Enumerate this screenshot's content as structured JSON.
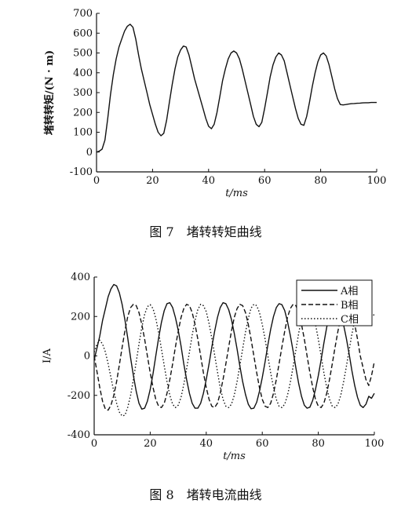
{
  "figures": {
    "fig7_caption": "图 7　堵转转矩曲线",
    "fig8_caption": "图 8　堵转电流曲线"
  },
  "chart_data": [
    {
      "type": "line",
      "title": "",
      "xlabel": "t/ms",
      "ylabel": "堵转转矩/(N · m)",
      "xlim": [
        0,
        100
      ],
      "ylim": [
        -100,
        700
      ],
      "xticks": [
        "0",
        "20",
        "40",
        "60",
        "80",
        "100"
      ],
      "yticks": [
        "-100",
        "0",
        "100",
        "200",
        "300",
        "400",
        "500",
        "600",
        "700"
      ],
      "grid": false,
      "series": [
        {
          "color": "#111111",
          "x": [
            0,
            1,
            2,
            3,
            4,
            5,
            6,
            7,
            8,
            9,
            10,
            11,
            12,
            13,
            14,
            15,
            16,
            17,
            18,
            19,
            20,
            21,
            22,
            23,
            24,
            25,
            26,
            27,
            28,
            29,
            30,
            31,
            32,
            33,
            34,
            35,
            36,
            37,
            38,
            39,
            40,
            41,
            42,
            43,
            44,
            45,
            46,
            47,
            48,
            49,
            50,
            51,
            52,
            53,
            54,
            55,
            56,
            57,
            58,
            59,
            60,
            61,
            62,
            63,
            64,
            65,
            66,
            67,
            68,
            69,
            70,
            71,
            72,
            73,
            74,
            75,
            76,
            77,
            78,
            79,
            80,
            81,
            82,
            83,
            84,
            85,
            86,
            87,
            88,
            89,
            90,
            91,
            92,
            93,
            94,
            95,
            96,
            97,
            98,
            99,
            100
          ],
          "y": [
            0,
            5,
            15,
            60,
            170,
            290,
            390,
            470,
            530,
            570,
            610,
            635,
            645,
            630,
            570,
            490,
            420,
            360,
            300,
            240,
            190,
            140,
            100,
            82,
            95,
            160,
            250,
            340,
            420,
            480,
            515,
            535,
            530,
            490,
            430,
            370,
            320,
            270,
            220,
            170,
            130,
            118,
            140,
            200,
            280,
            360,
            420,
            470,
            500,
            510,
            500,
            470,
            420,
            360,
            300,
            240,
            180,
            140,
            128,
            150,
            220,
            300,
            380,
            440,
            480,
            500,
            490,
            460,
            400,
            340,
            280,
            220,
            170,
            140,
            135,
            180,
            250,
            330,
            400,
            455,
            490,
            500,
            485,
            440,
            380,
            320,
            270,
            240,
            238,
            240,
            242,
            244,
            245,
            246,
            247,
            248,
            249,
            249,
            250,
            250,
            250
          ]
        }
      ]
    },
    {
      "type": "line",
      "title": "",
      "xlabel": "t/ms",
      "ylabel": "I/A",
      "xlim": [
        0,
        100
      ],
      "ylim": [
        -400,
        400
      ],
      "xticks": [
        "0",
        "20",
        "40",
        "60",
        "80",
        "100"
      ],
      "yticks": [
        "-400",
        "-200",
        "0",
        "200",
        "400"
      ],
      "grid": false,
      "legend_position": "top-right",
      "series": [
        {
          "name": "A相",
          "style": "solid",
          "x": [
            0,
            1,
            2,
            3,
            4,
            5,
            6,
            7,
            8,
            9,
            10,
            11,
            12,
            13,
            14,
            15,
            16,
            17,
            18,
            19,
            20,
            21,
            22,
            23,
            24,
            25,
            26,
            27,
            28,
            29,
            30,
            31,
            32,
            33,
            34,
            35,
            36,
            37,
            38,
            39,
            40,
            41,
            42,
            43,
            44,
            45,
            46,
            47,
            48,
            49,
            50,
            51,
            52,
            53,
            54,
            55,
            56,
            57,
            58,
            59,
            60,
            61,
            62,
            63,
            64,
            65,
            66,
            67,
            68,
            69,
            70,
            71,
            72,
            73,
            74,
            75,
            76,
            77,
            78,
            79,
            80,
            81,
            82,
            83,
            84,
            85,
            86,
            87,
            88,
            89,
            90,
            91,
            92,
            93,
            94,
            95,
            96,
            97,
            98,
            99,
            100
          ],
          "y": [
            -20,
            40,
            100,
            180,
            240,
            300,
            340,
            362,
            355,
            320,
            260,
            180,
            90,
            -10,
            -100,
            -180,
            -240,
            -270,
            -265,
            -230,
            -170,
            -90,
            0,
            90,
            170,
            230,
            265,
            270,
            245,
            195,
            130,
            50,
            -40,
            -120,
            -190,
            -240,
            -265,
            -265,
            -240,
            -190,
            -120,
            -40,
            45,
            125,
            195,
            245,
            270,
            265,
            235,
            185,
            115,
            35,
            -50,
            -130,
            -195,
            -245,
            -268,
            -265,
            -235,
            -180,
            -110,
            -30,
            55,
            135,
            200,
            245,
            265,
            260,
            230,
            175,
            105,
            25,
            -60,
            -140,
            -205,
            -250,
            -265,
            -260,
            -225,
            -170,
            -100,
            -20,
            65,
            145,
            210,
            250,
            262,
            250,
            215,
            160,
            90,
            10,
            -75,
            -150,
            -210,
            -250,
            -262,
            -245,
            -205,
            -215,
            -190
          ]
        },
        {
          "name": "B相",
          "style": "dashed",
          "x": [
            0,
            1,
            2,
            3,
            4,
            5,
            6,
            7,
            8,
            9,
            10,
            11,
            12,
            13,
            14,
            15,
            16,
            17,
            18,
            19,
            20,
            21,
            22,
            23,
            24,
            25,
            26,
            27,
            28,
            29,
            30,
            31,
            32,
            33,
            34,
            35,
            36,
            37,
            38,
            39,
            40,
            41,
            42,
            43,
            44,
            45,
            46,
            47,
            48,
            49,
            50,
            51,
            52,
            53,
            54,
            55,
            56,
            57,
            58,
            59,
            60,
            61,
            62,
            63,
            64,
            65,
            66,
            67,
            68,
            69,
            70,
            71,
            72,
            73,
            74,
            75,
            76,
            77,
            78,
            79,
            80,
            81,
            82,
            83,
            84,
            85,
            86,
            87,
            88,
            89,
            90,
            91,
            92,
            93,
            94,
            95,
            96,
            97,
            98,
            99,
            100
          ],
          "y": [
            0,
            -80,
            -160,
            -230,
            -270,
            -275,
            -250,
            -200,
            -130,
            -45,
            45,
            130,
            200,
            245,
            262,
            255,
            220,
            160,
            85,
            0,
            -85,
            -160,
            -220,
            -255,
            -262,
            -240,
            -190,
            -120,
            -40,
            45,
            125,
            195,
            240,
            262,
            255,
            220,
            160,
            85,
            0,
            -85,
            -160,
            -220,
            -255,
            -262,
            -240,
            -190,
            -120,
            -40,
            45,
            125,
            195,
            240,
            262,
            255,
            220,
            160,
            85,
            0,
            -85,
            -160,
            -220,
            -255,
            -262,
            -240,
            -190,
            -120,
            -40,
            45,
            125,
            195,
            240,
            262,
            255,
            220,
            160,
            85,
            0,
            -85,
            -160,
            -220,
            -255,
            -262,
            -240,
            -190,
            -120,
            -40,
            45,
            125,
            195,
            240,
            262,
            255,
            220,
            160,
            85,
            0,
            -60,
            -120,
            -150,
            -100,
            -30
          ]
        },
        {
          "name": "C相",
          "style": "dotted",
          "x": [
            0,
            1,
            2,
            3,
            4,
            5,
            6,
            7,
            8,
            9,
            10,
            11,
            12,
            13,
            14,
            15,
            16,
            17,
            18,
            19,
            20,
            21,
            22,
            23,
            24,
            25,
            26,
            27,
            28,
            29,
            30,
            31,
            32,
            33,
            34,
            35,
            36,
            37,
            38,
            39,
            40,
            41,
            42,
            43,
            44,
            45,
            46,
            47,
            48,
            49,
            50,
            51,
            52,
            53,
            54,
            55,
            56,
            57,
            58,
            59,
            60,
            61,
            62,
            63,
            64,
            65,
            66,
            67,
            68,
            69,
            70,
            71,
            72,
            73,
            74,
            75,
            76,
            77,
            78,
            79,
            80,
            81,
            82,
            83,
            84,
            85,
            86,
            87,
            88,
            89,
            90,
            91,
            92,
            93,
            94,
            95,
            96,
            97,
            98,
            99,
            100
          ],
          "y": [
            20,
            60,
            80,
            60,
            20,
            -40,
            -110,
            -180,
            -240,
            -285,
            -305,
            -300,
            -260,
            -200,
            -120,
            -30,
            60,
            145,
            210,
            250,
            260,
            240,
            190,
            120,
            35,
            -50,
            -130,
            -200,
            -245,
            -262,
            -250,
            -210,
            -145,
            -65,
            20,
            105,
            180,
            235,
            262,
            255,
            225,
            165,
            90,
            5,
            -80,
            -160,
            -220,
            -255,
            -262,
            -245,
            -200,
            -130,
            -50,
            35,
            120,
            190,
            242,
            262,
            255,
            220,
            160,
            85,
            0,
            -85,
            -160,
            -220,
            -255,
            -262,
            -245,
            -200,
            -135,
            -55,
            30,
            115,
            190,
            240,
            262,
            255,
            220,
            160,
            85,
            0,
            -85,
            -160,
            -220,
            -255,
            -262,
            -245,
            -200,
            -135,
            -55,
            30,
            110,
            180,
            230,
            255,
            250,
            220,
            180,
            200,
            210
          ]
        }
      ]
    }
  ]
}
